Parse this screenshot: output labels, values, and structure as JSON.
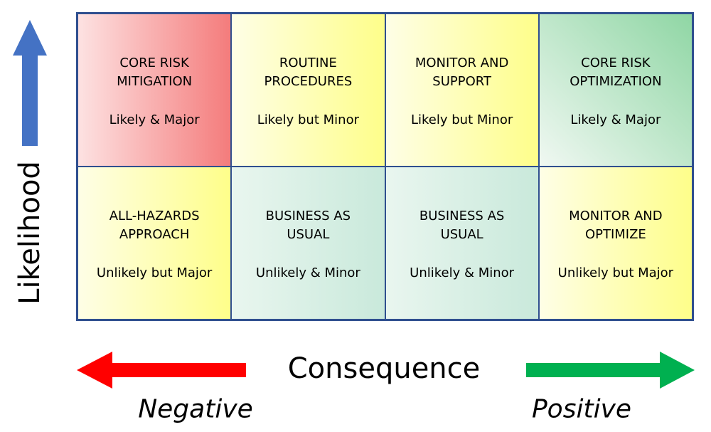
{
  "axes": {
    "y_label": "Likelihood",
    "x_label": "Consequence",
    "left_label": "Negative",
    "right_label": "Positive"
  },
  "cells": [
    {
      "title": [
        "CORE RISK",
        "MITIGATION"
      ],
      "subtitle": "Likely & Major"
    },
    {
      "title": [
        "ROUTINE",
        "PROCEDURES"
      ],
      "subtitle": "Likely but Minor"
    },
    {
      "title": [
        "MONITOR AND",
        "SUPPORT"
      ],
      "subtitle": "Likely but Minor"
    },
    {
      "title": [
        "CORE RISK",
        "OPTIMIZATION"
      ],
      "subtitle": "Likely & Major"
    },
    {
      "title": [
        "ALL-HAZARDS",
        "APPROACH"
      ],
      "subtitle": "Unlikely but Major"
    },
    {
      "title": [
        "BUSINESS AS",
        "USUAL"
      ],
      "subtitle": "Unlikely & Minor"
    },
    {
      "title": [
        "BUSINESS AS",
        "USUAL"
      ],
      "subtitle": "Unlikely & Minor"
    },
    {
      "title": [
        "MONITOR AND",
        "OPTIMIZE"
      ],
      "subtitle": "Unlikely but Major"
    }
  ]
}
